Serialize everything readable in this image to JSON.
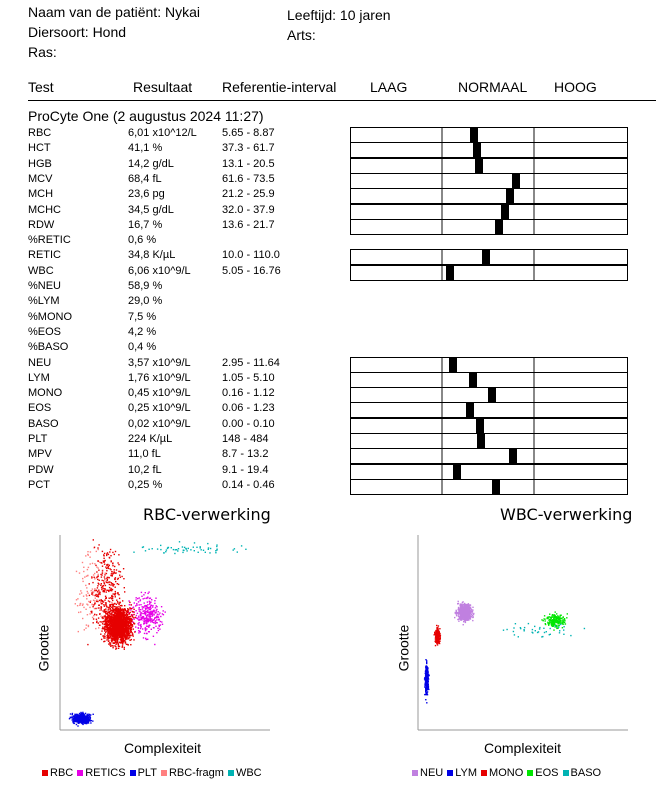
{
  "patient": {
    "name_label": "Naam van de patiënt: Nykai",
    "species_label": "Diersoort: Hond",
    "breed_label": "Ras:",
    "age_label": "Leeftijd: 10 jaren",
    "vet_label": "Arts:"
  },
  "columns": {
    "test": "Test",
    "result": "Resultaat",
    "reference": "Referentie-interval",
    "low": "LAAG",
    "normal": "NORMAAL",
    "high": "HOOG"
  },
  "section_title": "ProCyte One (2 augustus 2024 11:27)",
  "rows": [
    {
      "test": "RBC",
      "result": "6,01 x10^12/L",
      "ref": "5.65 - 8.87",
      "pos": 0.33
    },
    {
      "test": "HCT",
      "result": "41,1 %",
      "ref": "37.3 - 61.7",
      "pos": 0.37
    },
    {
      "test": "HGB",
      "result": "14,2 g/dL",
      "ref": "13.1 - 20.5",
      "pos": 0.39
    },
    {
      "test": "MCV",
      "result": "68,4 fL",
      "ref": "61.6 - 73.5",
      "pos": 0.84
    },
    {
      "test": "MCH",
      "result": "23,6 pg",
      "ref": "21.2 - 25.9",
      "pos": 0.77
    },
    {
      "test": "MCHC",
      "result": "34,5 g/dL",
      "ref": "32.0 - 37.9",
      "pos": 0.71
    },
    {
      "test": "RDW",
      "result": "16,7 %",
      "ref": "13.6 - 21.7",
      "pos": 0.64
    },
    {
      "test": "%RETIC",
      "result": "0,6 %",
      "ref": "",
      "pos": null
    },
    {
      "test": "RETIC",
      "result": "34,8 K/µL",
      "ref": "10.0 - 110.0",
      "pos": 0.48
    },
    {
      "test": "WBC",
      "result": "6,06 x10^9/L",
      "ref": "5.05 - 16.76",
      "pos": 0.04
    },
    {
      "test": "%NEU",
      "result": "58,9 %",
      "ref": "",
      "pos": null
    },
    {
      "test": "%LYM",
      "result": "29,0 %",
      "ref": "",
      "pos": null
    },
    {
      "test": "%MONO",
      "result": "7,5 %",
      "ref": "",
      "pos": null
    },
    {
      "test": "%EOS",
      "result": "4,2 %",
      "ref": "",
      "pos": null
    },
    {
      "test": "%BASO",
      "result": "0,4 %",
      "ref": "",
      "pos": null
    },
    {
      "test": "NEU",
      "result": "3,57 x10^9/L",
      "ref": "2.95 - 11.64",
      "pos": 0.07
    },
    {
      "test": "LYM",
      "result": "1,76 x10^9/L",
      "ref": "1.05 - 5.10",
      "pos": 0.32
    },
    {
      "test": "MONO",
      "result": "0,45 x10^9/L",
      "ref": "0.16 - 1.12",
      "pos": 0.55
    },
    {
      "test": "EOS",
      "result": "0,25 x10^9/L",
      "ref": "0.06 - 1.23",
      "pos": 0.28
    },
    {
      "test": "BASO",
      "result": "0,02 x10^9/L",
      "ref": "0.00 - 0.10",
      "pos": 0.4
    },
    {
      "test": "PLT",
      "result": "224 K/µL",
      "ref": "148 - 484",
      "pos": 0.42
    },
    {
      "test": "MPV",
      "result": "11,0 fL",
      "ref": "8.7 - 13.2",
      "pos": 0.8
    },
    {
      "test": "PDW",
      "result": "10,2 fL",
      "ref": "9.1 - 19.4",
      "pos": 0.12
    },
    {
      "test": "PCT",
      "result": "0,25 %",
      "ref": "0.14 - 0.46",
      "pos": 0.6
    }
  ],
  "rbc_chart": {
    "title": "RBC-verwerking",
    "ylabel": "Grootte",
    "xlabel": "Complexiteit",
    "legend": [
      {
        "label": "RBC",
        "color": "#e60000"
      },
      {
        "label": "RETICS",
        "color": "#e600e6"
      },
      {
        "label": "PLT",
        "color": "#0000e6"
      },
      {
        "label": "RBC-fragm",
        "color": "#ff8080"
      },
      {
        "label": "WBC",
        "color": "#00b3b3"
      }
    ]
  },
  "wbc_chart": {
    "title": "WBC-verwerking",
    "ylabel": "Grootte",
    "xlabel": "Complexiteit",
    "legend": [
      {
        "label": "NEU",
        "color": "#c080e0"
      },
      {
        "label": "LYM",
        "color": "#0000e6"
      },
      {
        "label": "MONO",
        "color": "#e60000"
      },
      {
        "label": "EOS",
        "color": "#00e600"
      },
      {
        "label": "BASO",
        "color": "#00b3b3"
      }
    ]
  }
}
